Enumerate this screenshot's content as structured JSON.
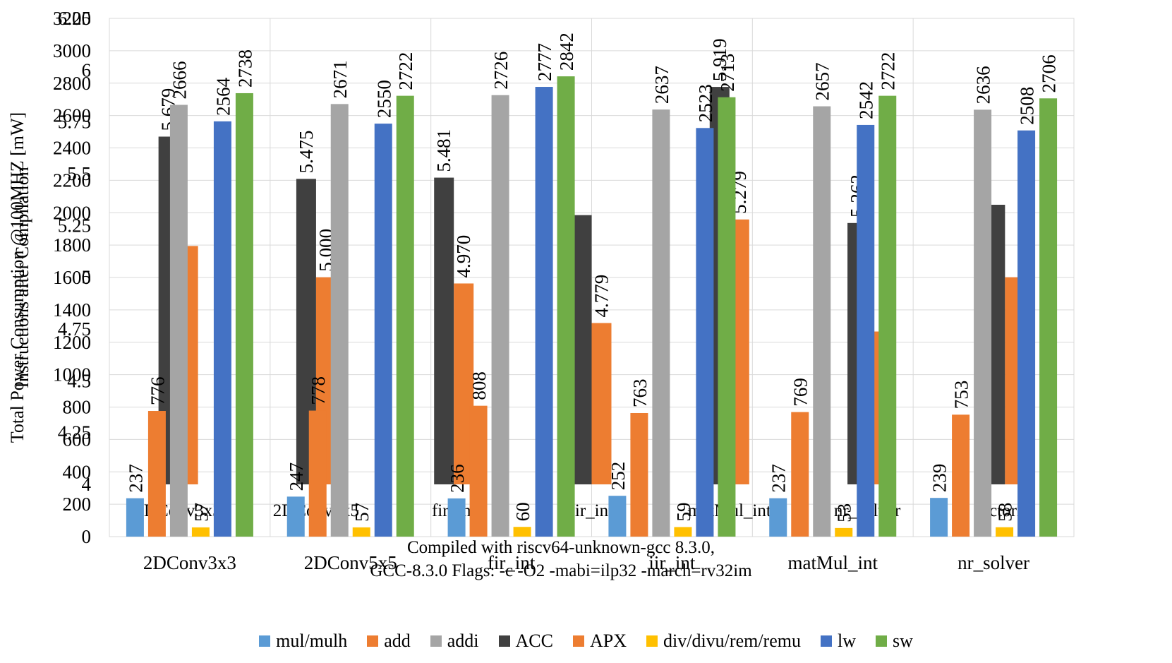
{
  "chart_data": [
    {
      "type": "bar",
      "title": "",
      "ylabel": "Total Power Consumption @100MHZ [mW]",
      "xlabel": "",
      "ylim": [
        0,
        3200
      ],
      "yticks": [
        0,
        200,
        400,
        600,
        800,
        1000,
        1200,
        1400,
        1600,
        1800,
        2000,
        2200,
        2400,
        2600,
        2800,
        3000,
        3200
      ],
      "categories": [
        "2DConv3x3",
        "2DConv5x5",
        "fir_int",
        "iir_int",
        "matMul_int",
        "nr_solver"
      ],
      "series": [
        {
          "name": "mul/mulh",
          "color": "#5B9BD5",
          "values": [
            237,
            247,
            236,
            252,
            237,
            239
          ]
        },
        {
          "name": "add",
          "color": "#ED7D31",
          "values": [
            776,
            778,
            808,
            763,
            769,
            753
          ]
        },
        {
          "name": "addi",
          "color": "#A5A5A5",
          "values": [
            2666,
            2671,
            2726,
            2637,
            2657,
            2636
          ]
        },
        {
          "name": "div/divu/rem/remu",
          "color": "#FFC000",
          "values": [
            57,
            57,
            60,
            59,
            53,
            58
          ]
        },
        {
          "name": "lw",
          "color": "#4472C4",
          "values": [
            2564,
            2550,
            2777,
            2523,
            2542,
            2508
          ]
        },
        {
          "name": "sw",
          "color": "#70AD47",
          "values": [
            2738,
            2722,
            2842,
            2713,
            2722,
            2706
          ]
        }
      ]
    },
    {
      "type": "bar",
      "title": "",
      "ylabel": "Instructions after Compilation",
      "xlabel": "Compiled with riscv64-unknown-gcc 8.3.0,\nGCC-8.3.0 Flags: -c -O2 -mabi=ilp32 -march=rv32im",
      "ylim": [
        4,
        6.25
      ],
      "yticks": [
        "4",
        "4.25",
        "4.5",
        "4.75",
        "5",
        "5.25",
        "5.5",
        "5.75",
        "6",
        "6.25"
      ],
      "categories": [
        "2DConv3x3",
        "2DConv5x5",
        "fir_int",
        "iir_int",
        "matMul_int",
        "nr_solver",
        "factorial"
      ],
      "series": [
        {
          "name": "ACC",
          "color": "#404040",
          "values": [
            5.679,
            5.475,
            5.481,
            5.3,
            5.919,
            5.262,
            5.35
          ]
        },
        {
          "name": "APX",
          "color": "#ED7D31",
          "values": [
            5.151,
            5.0,
            4.97,
            4.779,
            5.279,
            4.738,
            5.0
          ]
        }
      ],
      "data_labels": {
        "ACC": [
          "5.679",
          "5.475",
          "5.481",
          "",
          "5.919",
          "5.262",
          ""
        ],
        "APX": [
          "",
          "5.000",
          "4.970",
          "4.779",
          "5.279",
          "",
          ""
        ]
      }
    }
  ],
  "legend_main": [
    "mul/mulh",
    "add",
    "addi",
    "div/divu/rem/remu",
    "lw",
    "sw"
  ],
  "legend_overlay": [
    "ACC",
    "APX"
  ]
}
